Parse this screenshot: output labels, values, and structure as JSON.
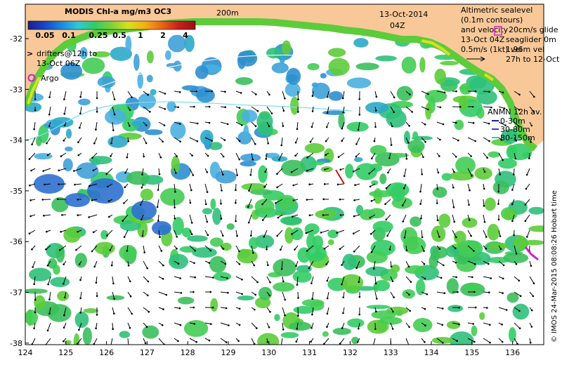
{
  "map": {
    "colorbar": {
      "title": "MODIS Chl-a mg/m3 OC3",
      "ticks": [
        "0.05",
        "0.1",
        "0.25",
        "0.5",
        "1",
        "2",
        "4"
      ],
      "gradient": [
        "#1b1f8a",
        "#1746c7",
        "#1e88e0",
        "#2ec9d8",
        "#33cc66",
        "#7fd23a",
        "#d8e020",
        "#f2b011",
        "#e8641a",
        "#c81e1e",
        "#9b1010"
      ]
    },
    "isobath_label": "200m",
    "date": "13-Oct-2014",
    "time": "04Z",
    "legend_drifters": {
      "symbol": ">",
      "text_line1": "drifters@12h to",
      "text_line2": "13-Oct 06Z"
    },
    "legend_argo": {
      "symbol": "O",
      "text": "Argo"
    },
    "altimetry_note": {
      "line1": "Altimetric sealevel",
      "line2": "(0.1m contours)",
      "line3": "and velocity",
      "line4": "13-Oct 04Z",
      "line5": "0.5m/s (1kt) vel",
      "glider_line1": "20cm/s glide",
      "glider_line2": "seaglider 0m",
      "glider_line3": "1.96m vel",
      "glider_line4": "27h to 12-Oct"
    },
    "anmn": {
      "title": "ANMN 12h av.",
      "items": [
        {
          "label": "0-30m",
          "color": "#1a1aa0"
        },
        {
          "label": "30-80m",
          "color": "#3838e0"
        },
        {
          "label": "80-150m",
          "color": "#26c8e0"
        }
      ]
    },
    "credit": "© IMOS 24-Mar-2015 08:08:26 Hobart time",
    "x_ticks": [
      "124",
      "125",
      "126",
      "127",
      "128",
      "129",
      "130",
      "131",
      "132",
      "133",
      "134",
      "135",
      "136"
    ],
    "y_ticks": [
      "-32",
      "-33",
      "-34",
      "-35",
      "-36",
      "-37",
      "-38"
    ],
    "colors": {
      "land": "#f8c898",
      "ocean": "#ffffff",
      "chl_mid": "#33cc66",
      "chl_low": "#3fa0d8",
      "chl_high": "#7fd23a",
      "arrow": "#000000",
      "contour": "#7fdcf0"
    }
  }
}
